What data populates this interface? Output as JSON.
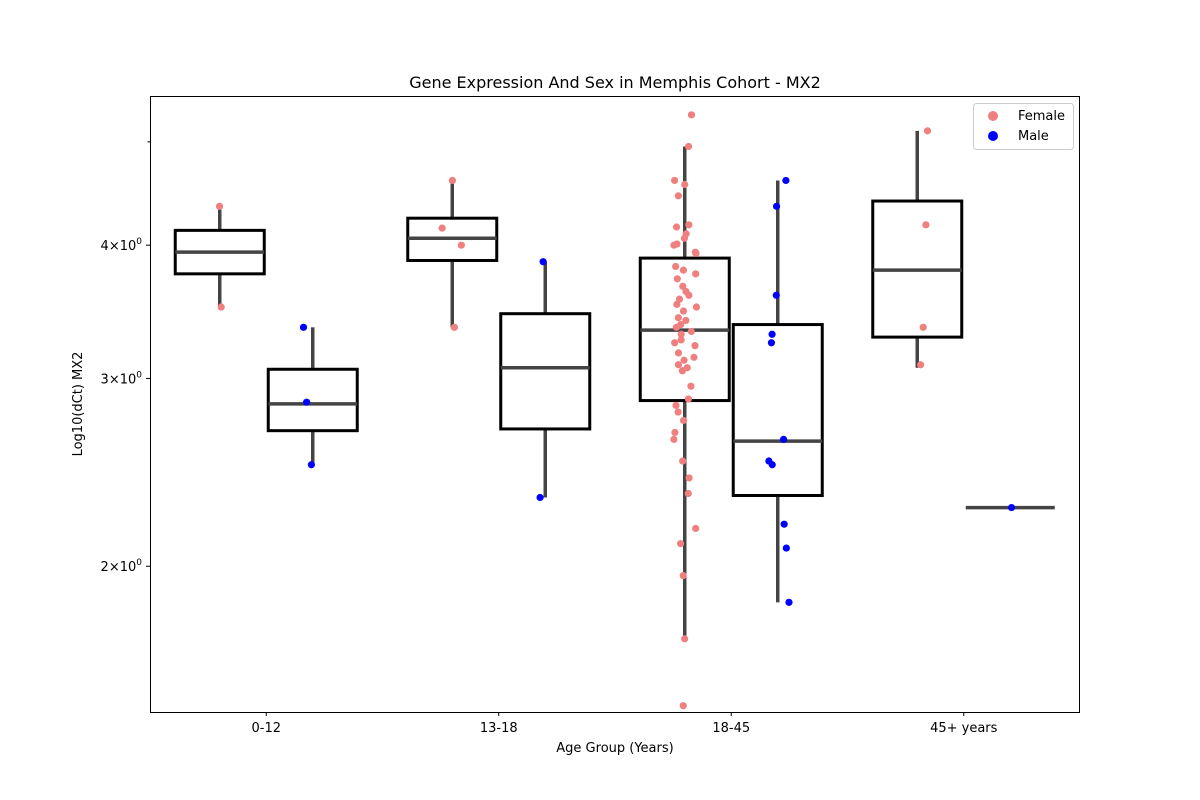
{
  "chart_data": {
    "type": "box",
    "title": "Gene Expression And Sex in Memphis Cohort - MX2",
    "xlabel": "Age Group (Years)",
    "ylabel": "Log10(dCt) MX2",
    "y_scale": "log",
    "ylim": [
      1.46,
      5.52
    ],
    "y_ticks": [
      {
        "value": 2,
        "base": "2",
        "exp": "0"
      },
      {
        "value": 3,
        "base": "3",
        "exp": "0"
      },
      {
        "value": 4,
        "base": "4",
        "exp": "0"
      }
    ],
    "categories": [
      "0-12",
      "13-18",
      "18-45",
      "45+ years"
    ],
    "hue_order": [
      "Female",
      "Male"
    ],
    "legend": {
      "placement": "top-right",
      "entries": [
        {
          "label": "Female",
          "color": "#f08080"
        },
        {
          "label": "Male",
          "color": "#0000ff"
        }
      ]
    },
    "colors": {
      "box_edge": "#000000",
      "median_whisker": "#444444",
      "Female": "#f08080",
      "Male": "#0000ff"
    },
    "boxes": [
      {
        "category": "0-12",
        "hue": "Female",
        "whisker_low": 3.5,
        "q1": 3.76,
        "median": 3.94,
        "q3": 4.13,
        "whisker_high": 4.32
      },
      {
        "category": "0-12",
        "hue": "Male",
        "whisker_low": 2.49,
        "q1": 2.68,
        "median": 2.84,
        "q3": 3.06,
        "whisker_high": 3.35
      },
      {
        "category": "13-18",
        "hue": "Female",
        "whisker_low": 3.35,
        "q1": 3.87,
        "median": 4.06,
        "q3": 4.24,
        "whisker_high": 4.6
      },
      {
        "category": "13-18",
        "hue": "Male",
        "whisker_low": 2.32,
        "q1": 2.69,
        "median": 3.07,
        "q3": 3.45,
        "whisker_high": 3.86
      },
      {
        "category": "18-45",
        "hue": "Female",
        "whisker_low": 1.71,
        "q1": 2.86,
        "median": 3.33,
        "q3": 3.89,
        "whisker_high": 4.95
      },
      {
        "category": "18-45",
        "hue": "Male",
        "whisker_low": 1.85,
        "q1": 2.33,
        "median": 2.62,
        "q3": 3.37,
        "whisker_high": 4.6
      },
      {
        "category": "45+ years",
        "hue": "Female",
        "whisker_low": 3.07,
        "q1": 3.28,
        "median": 3.79,
        "q3": 4.4,
        "whisker_high": 5.12
      },
      {
        "category": "45+ years",
        "hue": "Male",
        "whisker_low": 2.27,
        "q1": 2.27,
        "median": 2.27,
        "q3": 2.27,
        "whisker_high": 2.27
      }
    ],
    "points": [
      {
        "category": "0-12",
        "hue": "Female",
        "values": [
          4.35,
          3.5
        ]
      },
      {
        "category": "0-12",
        "hue": "Male",
        "values": [
          3.35,
          2.85,
          2.49
        ]
      },
      {
        "category": "13-18",
        "hue": "Female",
        "values": [
          4.6,
          4.15,
          4.0,
          3.35
        ]
      },
      {
        "category": "13-18",
        "hue": "Male",
        "values": [
          3.86,
          2.32
        ]
      },
      {
        "category": "18-45",
        "hue": "Female",
        "values": [
          5.3,
          4.95,
          4.6,
          4.56,
          4.45,
          4.18,
          4.16,
          4.1,
          4.06,
          4.01,
          4.0,
          3.94,
          3.93,
          3.82,
          3.79,
          3.76,
          3.72,
          3.66,
          3.62,
          3.59,
          3.56,
          3.52,
          3.5,
          3.47,
          3.42,
          3.4,
          3.37,
          3.35,
          3.32,
          3.3,
          3.26,
          3.24,
          3.22,
          3.17,
          3.14,
          3.12,
          3.09,
          3.07,
          3.05,
          2.95,
          2.87,
          2.83,
          2.79,
          2.74,
          2.67,
          2.63,
          2.51,
          2.42,
          2.34,
          2.17,
          2.1,
          1.96,
          1.71,
          1.48
        ]
      },
      {
        "category": "18-45",
        "hue": "Male",
        "values": [
          4.6,
          4.35,
          3.59,
          3.3,
          3.24,
          2.63,
          2.51,
          2.49,
          2.19,
          2.08,
          1.85
        ]
      },
      {
        "category": "45+ years",
        "hue": "Female",
        "values": [
          5.12,
          4.18,
          3.35,
          3.09
        ]
      },
      {
        "category": "45+ years",
        "hue": "Male",
        "values": [
          2.27
        ]
      }
    ]
  }
}
